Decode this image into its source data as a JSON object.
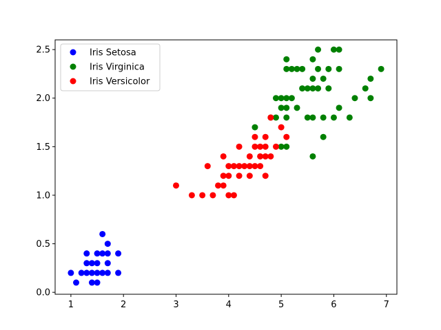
{
  "chart_data": {
    "type": "scatter",
    "title": "",
    "xlabel": "",
    "ylabel": "",
    "xlim": [
      0.7,
      7.2
    ],
    "ylim": [
      -0.02,
      2.6
    ],
    "xticks": [
      1,
      2,
      3,
      4,
      5,
      6,
      7
    ],
    "yticks": [
      0.0,
      0.5,
      1.0,
      1.5,
      2.0,
      2.5
    ],
    "xtick_labels": [
      "1",
      "2",
      "3",
      "4",
      "5",
      "6",
      "7"
    ],
    "ytick_labels": [
      "0.0",
      "0.5",
      "1.0",
      "1.5",
      "2.0",
      "2.5"
    ],
    "grid": false,
    "legend_position": "top-left",
    "series": [
      {
        "name": "Iris Setosa",
        "color": "#0000ff",
        "points": [
          [
            1.0,
            0.2
          ],
          [
            1.1,
            0.1
          ],
          [
            1.2,
            0.2
          ],
          [
            1.3,
            0.2
          ],
          [
            1.3,
            0.3
          ],
          [
            1.3,
            0.4
          ],
          [
            1.4,
            0.1
          ],
          [
            1.4,
            0.2
          ],
          [
            1.4,
            0.3
          ],
          [
            1.5,
            0.1
          ],
          [
            1.5,
            0.2
          ],
          [
            1.5,
            0.3
          ],
          [
            1.5,
            0.4
          ],
          [
            1.6,
            0.2
          ],
          [
            1.6,
            0.4
          ],
          [
            1.6,
            0.6
          ],
          [
            1.7,
            0.2
          ],
          [
            1.7,
            0.3
          ],
          [
            1.7,
            0.4
          ],
          [
            1.7,
            0.5
          ],
          [
            1.9,
            0.2
          ],
          [
            1.9,
            0.4
          ]
        ]
      },
      {
        "name": "Iris Virginica",
        "color": "#008000",
        "points": [
          [
            4.5,
            1.7
          ],
          [
            4.8,
            1.8
          ],
          [
            4.9,
            1.8
          ],
          [
            4.9,
            2.0
          ],
          [
            5.0,
            1.5
          ],
          [
            5.0,
            1.9
          ],
          [
            5.0,
            2.0
          ],
          [
            5.1,
            1.5
          ],
          [
            5.1,
            1.8
          ],
          [
            5.1,
            1.9
          ],
          [
            5.1,
            2.0
          ],
          [
            5.1,
            2.3
          ],
          [
            5.1,
            2.4
          ],
          [
            5.2,
            2.0
          ],
          [
            5.2,
            2.3
          ],
          [
            5.3,
            1.9
          ],
          [
            5.3,
            2.3
          ],
          [
            5.4,
            2.1
          ],
          [
            5.4,
            2.3
          ],
          [
            5.5,
            1.8
          ],
          [
            5.5,
            2.1
          ],
          [
            5.6,
            1.4
          ],
          [
            5.6,
            1.8
          ],
          [
            5.6,
            2.1
          ],
          [
            5.6,
            2.2
          ],
          [
            5.6,
            2.4
          ],
          [
            5.7,
            2.1
          ],
          [
            5.7,
            2.3
          ],
          [
            5.7,
            2.5
          ],
          [
            5.8,
            1.6
          ],
          [
            5.8,
            1.8
          ],
          [
            5.8,
            2.2
          ],
          [
            5.9,
            2.1
          ],
          [
            5.9,
            2.3
          ],
          [
            6.0,
            1.8
          ],
          [
            6.0,
            2.5
          ],
          [
            6.1,
            1.9
          ],
          [
            6.1,
            2.3
          ],
          [
            6.1,
            2.5
          ],
          [
            6.3,
            1.8
          ],
          [
            6.4,
            2.0
          ],
          [
            6.6,
            2.1
          ],
          [
            6.7,
            2.0
          ],
          [
            6.7,
            2.2
          ],
          [
            6.9,
            2.3
          ]
        ]
      },
      {
        "name": "Iris Versicolor",
        "color": "#ff0000",
        "points": [
          [
            3.0,
            1.1
          ],
          [
            3.3,
            1.0
          ],
          [
            3.5,
            1.0
          ],
          [
            3.6,
            1.3
          ],
          [
            3.7,
            1.0
          ],
          [
            3.8,
            1.1
          ],
          [
            3.9,
            1.1
          ],
          [
            3.9,
            1.2
          ],
          [
            3.9,
            1.4
          ],
          [
            4.0,
            1.0
          ],
          [
            4.0,
            1.2
          ],
          [
            4.0,
            1.3
          ],
          [
            4.1,
            1.0
          ],
          [
            4.1,
            1.3
          ],
          [
            4.2,
            1.2
          ],
          [
            4.2,
            1.3
          ],
          [
            4.2,
            1.5
          ],
          [
            4.3,
            1.3
          ],
          [
            4.4,
            1.2
          ],
          [
            4.4,
            1.3
          ],
          [
            4.4,
            1.4
          ],
          [
            4.5,
            1.3
          ],
          [
            4.5,
            1.5
          ],
          [
            4.5,
            1.6
          ],
          [
            4.6,
            1.3
          ],
          [
            4.6,
            1.4
          ],
          [
            4.6,
            1.5
          ],
          [
            4.7,
            1.2
          ],
          [
            4.7,
            1.4
          ],
          [
            4.7,
            1.5
          ],
          [
            4.7,
            1.6
          ],
          [
            4.8,
            1.4
          ],
          [
            4.8,
            1.8
          ],
          [
            4.9,
            1.5
          ],
          [
            5.0,
            1.7
          ],
          [
            5.1,
            1.6
          ]
        ]
      }
    ]
  }
}
